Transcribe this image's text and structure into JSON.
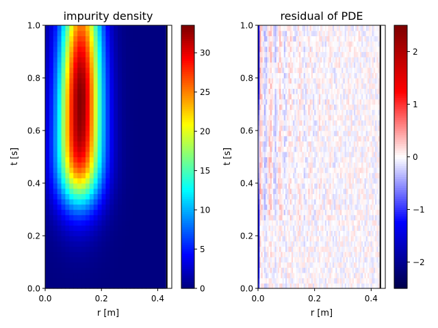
{
  "chart_data": [
    {
      "type": "heatmap",
      "title": "impurity density",
      "xlabel": "r [m]",
      "ylabel": "t [s]",
      "xlim": [
        0,
        0.45
      ],
      "ylim": [
        0,
        1
      ],
      "xticks": [
        "0.0",
        "0.2",
        "0.4"
      ],
      "yticks": [
        "0.0",
        "0.2",
        "0.4",
        "0.6",
        "0.8",
        "1.0"
      ],
      "colormap": "jet",
      "clim": [
        0,
        33.5
      ],
      "colorbar_ticks": [
        "0",
        "5",
        "10",
        "15",
        "20",
        "25",
        "30"
      ],
      "field": {
        "r_max": 0.43,
        "peak_r": 0.125,
        "peak_t": 0.72,
        "peak_value": 33.5,
        "grid_nr": 30,
        "grid_nt": 50
      }
    },
    {
      "type": "heatmap",
      "title": "residual of PDE",
      "xlabel": "r [m]",
      "ylabel": "t [s]",
      "xlim": [
        0,
        0.45
      ],
      "ylim": [
        0,
        1
      ],
      "xticks": [
        "0.0",
        "0.2",
        "0.4"
      ],
      "yticks": [
        "0.0",
        "0.2",
        "0.4",
        "0.6",
        "0.8",
        "1.0"
      ],
      "colormap": "seismic",
      "clim": [
        -2.5,
        2.5
      ],
      "colorbar_ticks": [
        "−2",
        "−1",
        "0",
        "1",
        "2"
      ],
      "field": {
        "r_max": 0.43,
        "typical_amplitude": 0.4,
        "edge_value": -1.5,
        "grid_nr": 80,
        "grid_nt": 50
      }
    }
  ]
}
